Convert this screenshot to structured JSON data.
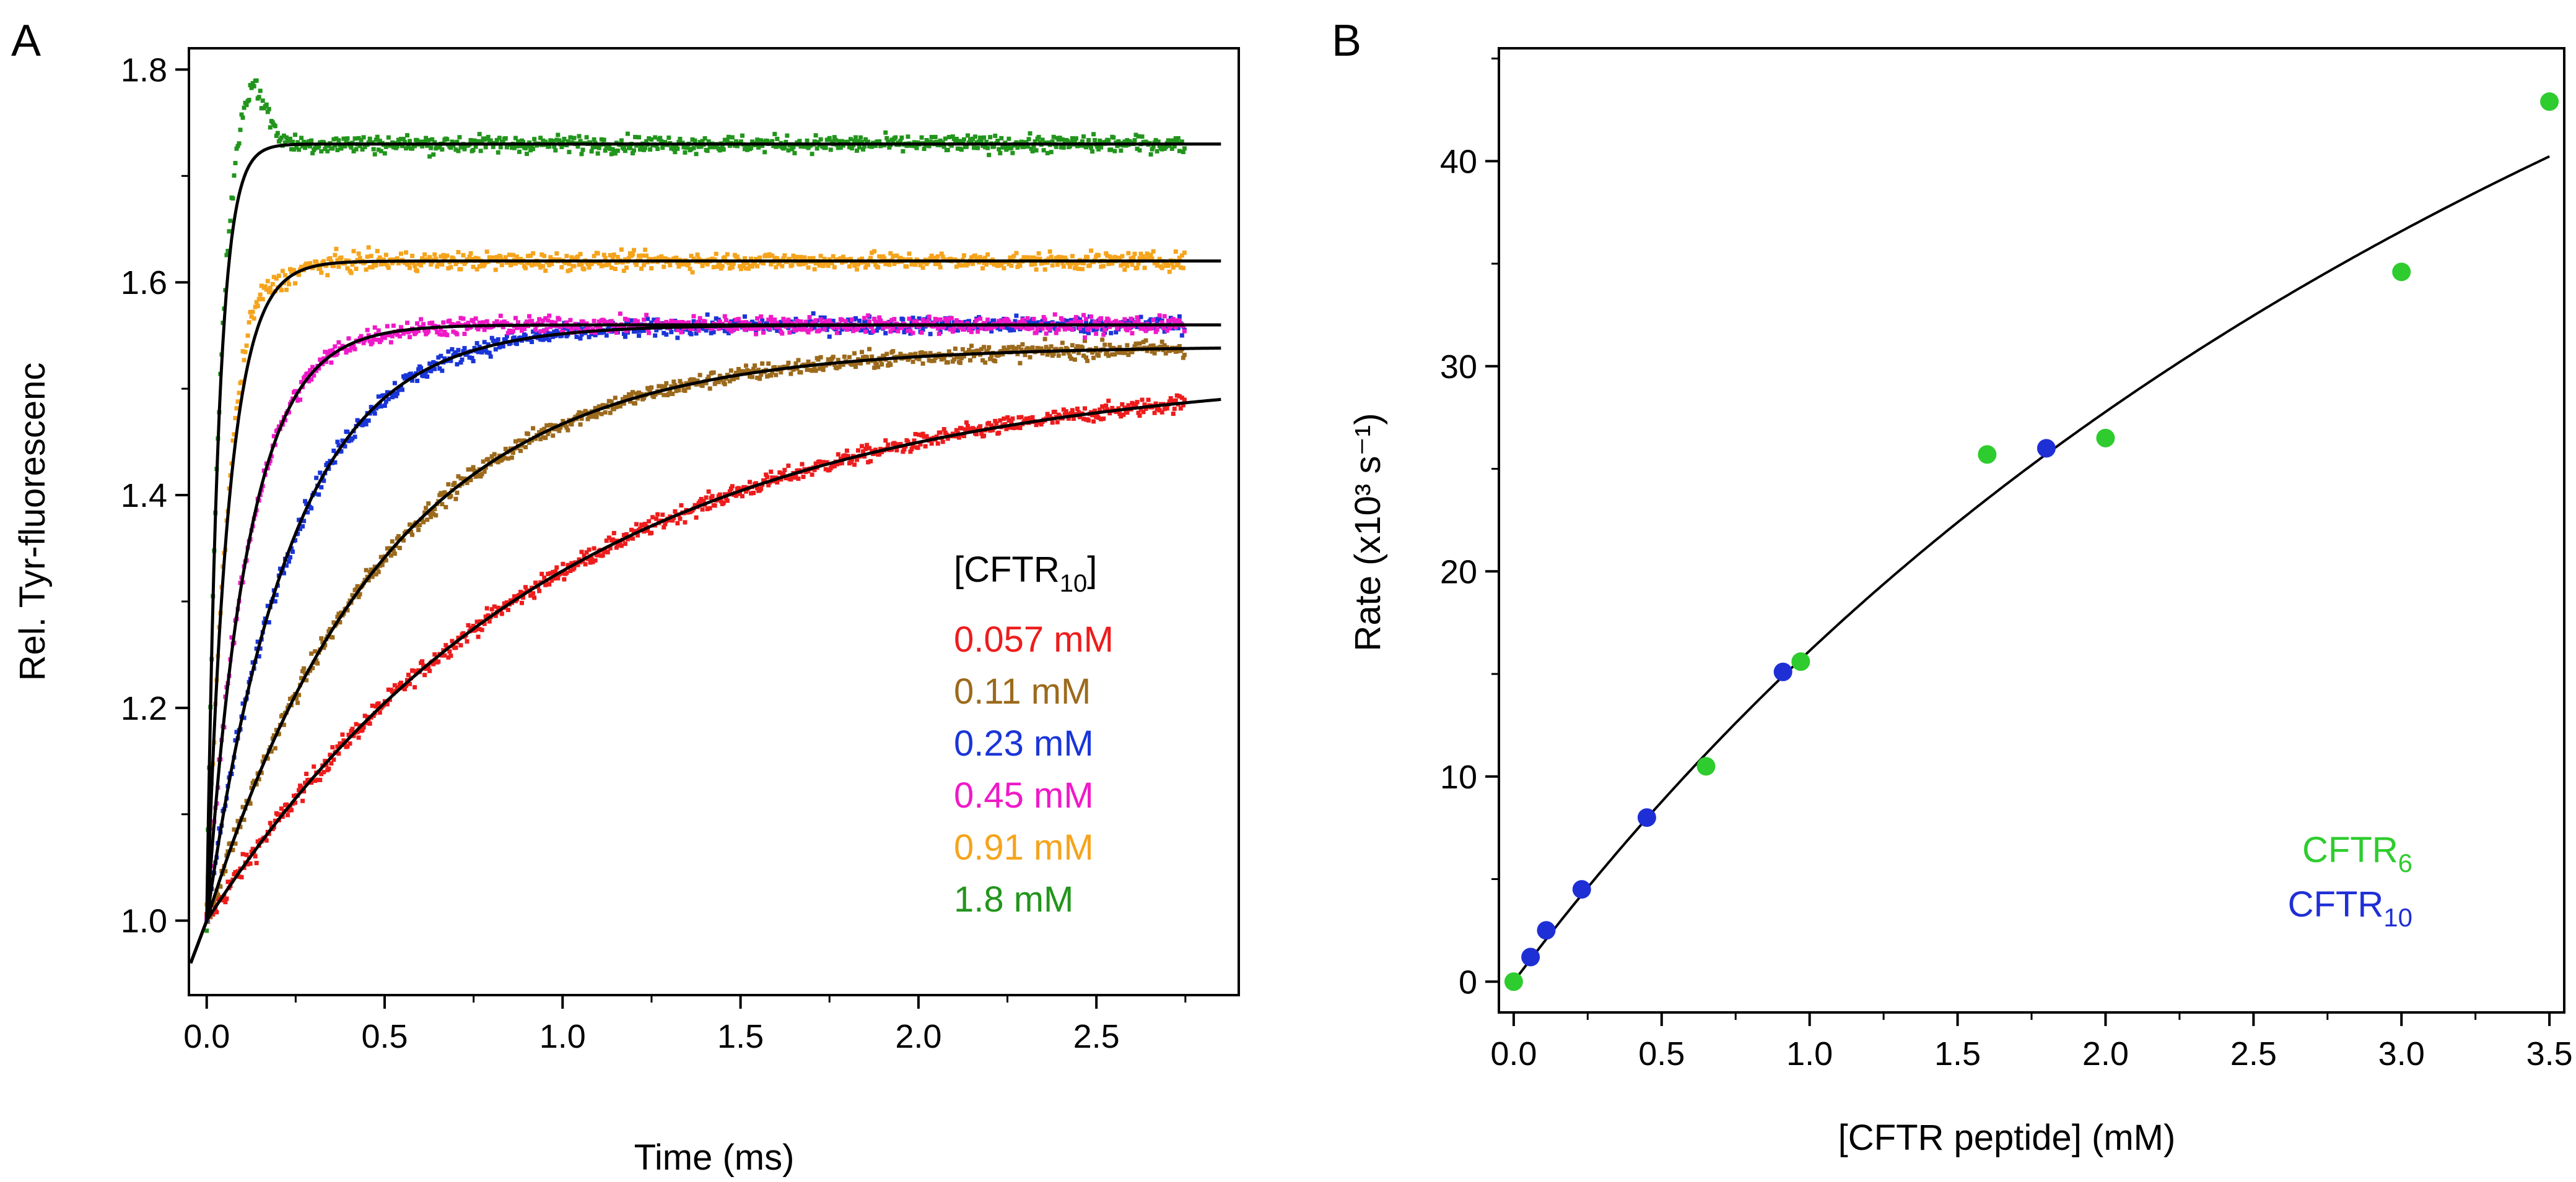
{
  "chart_data": [
    {
      "panel": "A",
      "type": "line",
      "xlabel": "Time (ms)",
      "ylabel": "Rel. Tyr-fluorescenc",
      "xlim": [
        -0.05,
        2.9
      ],
      "ylim": [
        0.93,
        1.82
      ],
      "xticks": [
        0.0,
        0.5,
        1.0,
        1.5,
        2.0,
        2.5
      ],
      "xtick_labels": [
        "0.0",
        "0.5",
        "1.0",
        "1.5",
        "2.0",
        "2.5"
      ],
      "yticks": [
        1.0,
        1.2,
        1.4,
        1.6,
        1.8
      ],
      "ytick_labels": [
        "1.0",
        "1.2",
        "1.4",
        "1.6",
        "1.8"
      ],
      "legend_title": {
        "prefix": "[CFTR",
        "sub": "10",
        "suffix": "]"
      },
      "legend_placement": "right-center",
      "fit_color": "#000000",
      "series": [
        {
          "name": "0.057 mM",
          "color": "#ee1c1c",
          "k": 1.0,
          "amplitude": 0.52,
          "overshoot": 0.0,
          "end": 1.52
        },
        {
          "name": "0.11 mM",
          "color": "#9c6a1c",
          "k": 2.0,
          "amplitude": 0.54,
          "overshoot": 0.0,
          "end": 1.535
        },
        {
          "name": "0.23 mM",
          "color": "#1a35d8",
          "k": 4.2,
          "amplitude": 0.56,
          "overshoot": 0.0,
          "end": 1.555
        },
        {
          "name": "0.45 mM",
          "color": "#f019c8",
          "k": 8.5,
          "amplitude": 0.56,
          "overshoot": 0.0,
          "end": 1.565
        },
        {
          "name": "0.91 mM",
          "color": "#f5a41c",
          "k": 16.0,
          "amplitude": 0.62,
          "overshoot": 0.02,
          "end": 1.62
        },
        {
          "name": "1.8 mM",
          "color": "#22951c",
          "k": 30.0,
          "amplitude": 0.73,
          "overshoot": 0.05,
          "end": 1.73
        }
      ]
    },
    {
      "panel": "B",
      "type": "scatter",
      "xlabel": "[CFTR peptide] (mM)",
      "ylabel": "Rate (x10³ s⁻¹)",
      "xlim": [
        -0.05,
        3.55
      ],
      "ylim": [
        -1.5,
        45.5
      ],
      "xticks": [
        0.0,
        0.5,
        1.0,
        1.5,
        2.0,
        2.5,
        3.0,
        3.5
      ],
      "xtick_labels": [
        "0.0",
        "0.5",
        "1.0",
        "1.5",
        "2.0",
        "2.5",
        "3.0",
        "3.5"
      ],
      "yticks": [
        0,
        10,
        20,
        30,
        40
      ],
      "ytick_labels": [
        "0",
        "10",
        "20",
        "30",
        "40"
      ],
      "fit": {
        "type": "hyperbolic",
        "kmax": 100,
        "Kd": 5.2
      },
      "legend_placement": "bottom-right",
      "series": [
        {
          "name": "CFTR6",
          "label_base": "CFTR",
          "label_sub": "6",
          "color": "#2ecc2e",
          "x": [
            0.0,
            0.65,
            0.97,
            1.6,
            2.0,
            3.0,
            3.5
          ],
          "y": [
            0.0,
            10.5,
            15.6,
            25.7,
            26.5,
            34.6,
            42.9
          ]
        },
        {
          "name": "CFTR10",
          "label_base": "CFTR",
          "label_sub": "10",
          "color": "#1f2fd6",
          "x": [
            0.057,
            0.11,
            0.23,
            0.45,
            0.91,
            1.8
          ],
          "y": [
            1.2,
            2.5,
            4.5,
            8.0,
            15.1,
            26.0
          ]
        }
      ]
    }
  ],
  "panel_labels": {
    "a": "A",
    "b": "B"
  }
}
